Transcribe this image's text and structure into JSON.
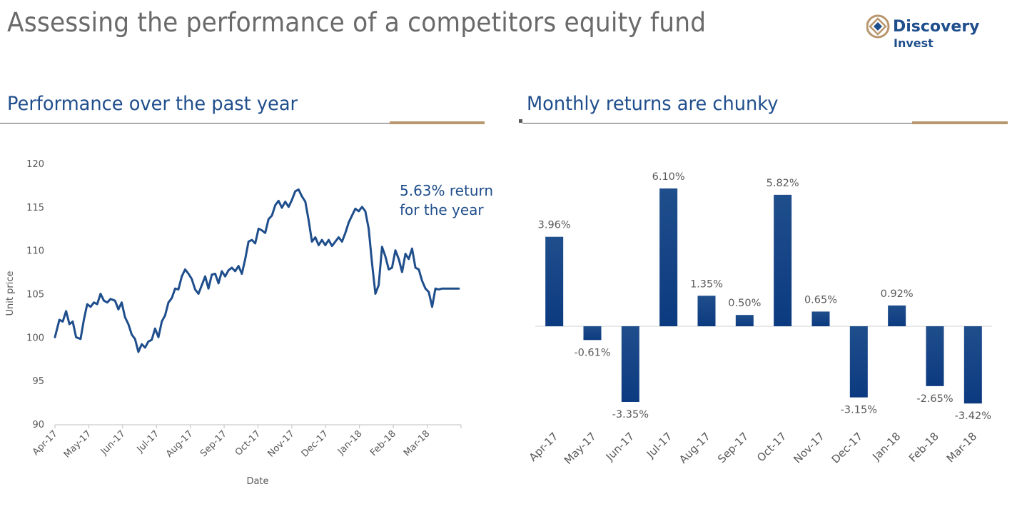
{
  "header": {
    "title": "Assessing the performance of a competitors equity fund",
    "logo_name": "Discovery",
    "logo_sub": "Invest"
  },
  "left_panel": {
    "title": "Performance over the past year"
  },
  "right_panel": {
    "title": "Monthly returns are chunky"
  },
  "colors": {
    "line": "#1f4e8c",
    "accent": "#b8966e",
    "bar_top": "#1f4e8c",
    "bar_bottom": "#0c3a80"
  },
  "chart_data": [
    {
      "type": "line",
      "title": "",
      "xlabel": "Date",
      "ylabel": "Unit price",
      "ylim": [
        90,
        120
      ],
      "yticks": [
        90,
        95,
        100,
        105,
        110,
        115,
        120
      ],
      "xticks": [
        "Apr-17",
        "May-17",
        "Jun-17",
        "Jul-17",
        "Aug-17",
        "Sep-17",
        "Oct-17",
        "Nov-17",
        "Dec-17",
        "Jan-18",
        "Feb-18",
        "Mar-18"
      ],
      "annotation": [
        "5.63% return",
        "for the year"
      ],
      "grid": false,
      "series": [
        {
          "x": [
            "2017-04-01",
            "2017-04-05",
            "2017-04-08",
            "2017-04-11",
            "2017-04-14",
            "2017-04-17",
            "2017-04-20",
            "2017-04-24",
            "2017-04-27",
            "2017-04-30",
            "2017-05-03",
            "2017-05-06",
            "2017-05-09",
            "2017-05-12",
            "2017-05-15",
            "2017-05-18",
            "2017-05-21",
            "2017-05-25",
            "2017-05-28",
            "2017-05-31",
            "2017-06-03",
            "2017-06-06",
            "2017-06-09",
            "2017-06-12",
            "2017-06-15",
            "2017-06-18",
            "2017-06-21",
            "2017-06-24",
            "2017-06-27",
            "2017-06-30",
            "2017-07-03",
            "2017-07-06",
            "2017-07-09",
            "2017-07-12",
            "2017-07-15",
            "2017-07-18",
            "2017-07-21",
            "2017-07-24",
            "2017-07-27",
            "2017-07-30",
            "2017-08-02",
            "2017-08-05",
            "2017-08-08",
            "2017-08-11",
            "2017-08-14",
            "2017-08-17",
            "2017-08-20",
            "2017-08-23",
            "2017-08-26",
            "2017-08-29",
            "2017-09-01",
            "2017-09-04",
            "2017-09-07",
            "2017-09-10",
            "2017-09-13",
            "2017-09-16",
            "2017-09-19",
            "2017-09-22",
            "2017-09-25",
            "2017-09-28",
            "2017-10-01",
            "2017-10-04",
            "2017-10-07",
            "2017-10-10",
            "2017-10-13",
            "2017-10-16",
            "2017-10-19",
            "2017-10-22",
            "2017-10-25",
            "2017-10-28",
            "2017-10-31",
            "2017-11-03",
            "2017-11-06",
            "2017-11-09",
            "2017-11-12",
            "2017-11-15",
            "2017-11-18",
            "2017-11-21",
            "2017-11-24",
            "2017-11-27",
            "2017-11-30",
            "2017-12-03",
            "2017-12-06",
            "2017-12-09",
            "2017-12-12",
            "2017-12-15",
            "2017-12-18",
            "2017-12-21",
            "2017-12-24",
            "2017-12-27",
            "2017-12-30",
            "2018-01-02",
            "2018-01-05",
            "2018-01-08",
            "2018-01-11",
            "2018-01-14",
            "2018-01-17",
            "2018-01-20",
            "2018-01-23",
            "2018-01-26",
            "2018-01-29",
            "2018-02-01",
            "2018-02-04",
            "2018-02-07",
            "2018-02-10",
            "2018-02-13",
            "2018-02-16",
            "2018-02-19",
            "2018-02-22",
            "2018-02-25",
            "2018-02-28",
            "2018-03-03",
            "2018-03-06",
            "2018-03-09",
            "2018-03-12",
            "2018-03-15",
            "2018-03-18",
            "2018-03-21",
            "2018-03-24",
            "2018-03-27",
            "2018-03-30"
          ],
          "y": [
            100.0,
            102.0,
            101.8,
            103.0,
            101.5,
            101.8,
            100.0,
            99.8,
            102.0,
            103.8,
            103.5,
            104.0,
            103.8,
            105.0,
            104.2,
            104.0,
            104.4,
            104.2,
            103.2,
            104.0,
            102.3,
            101.5,
            100.3,
            99.8,
            98.3,
            99.2,
            98.8,
            99.5,
            99.7,
            101.0,
            100.0,
            101.8,
            102.5,
            104.0,
            104.5,
            105.6,
            105.5,
            107.0,
            107.8,
            107.3,
            106.7,
            105.5,
            105.0,
            106.0,
            107.0,
            105.6,
            107.2,
            107.3,
            106.2,
            107.6,
            107.0,
            107.7,
            108.0,
            107.6,
            108.2,
            107.3,
            109.0,
            111.0,
            111.2,
            110.8,
            112.5,
            112.3,
            112.0,
            113.6,
            114.0,
            115.2,
            115.7,
            114.9,
            115.6,
            115.0,
            115.8,
            116.8,
            117.0,
            116.2,
            115.6,
            113.5,
            111.0,
            111.5,
            110.6,
            111.2,
            110.6,
            111.2,
            110.5,
            111.0,
            111.5,
            111.0,
            112.0,
            113.2,
            114.0,
            114.8,
            114.5,
            115.0,
            114.5,
            112.5,
            108.5,
            105.0,
            106.0,
            110.4,
            109.3,
            107.8,
            108.0,
            110.0,
            109.0,
            107.5,
            109.6,
            109.0,
            110.2,
            108.0,
            107.8,
            106.5,
            105.6,
            105.2,
            103.5,
            105.6,
            105.5,
            105.6,
            105.6,
            105.6,
            105.6,
            105.6,
            105.6
          ]
        }
      ]
    },
    {
      "type": "bar",
      "title": "",
      "categories": [
        "Apr-17",
        "May-17",
        "Jun-17",
        "Jul-17",
        "Aug-17",
        "Sep-17",
        "Oct-17",
        "Nov-17",
        "Dec-17",
        "Jan-18",
        "Feb-18",
        "Mar-18"
      ],
      "values": [
        3.96,
        -0.61,
        -3.35,
        6.1,
        1.35,
        0.5,
        5.82,
        0.65,
        -3.15,
        0.92,
        -2.65,
        -3.42
      ],
      "labels": [
        "3.96%",
        "-0.61%",
        "-3.35%",
        "6.10%",
        "1.35%",
        "0.50%",
        "5.82%",
        "0.65%",
        "-3.15%",
        "0.92%",
        "-2.65%",
        "-3.42%"
      ],
      "ylim": [
        -4.3,
        7.1
      ],
      "grid": false
    }
  ]
}
